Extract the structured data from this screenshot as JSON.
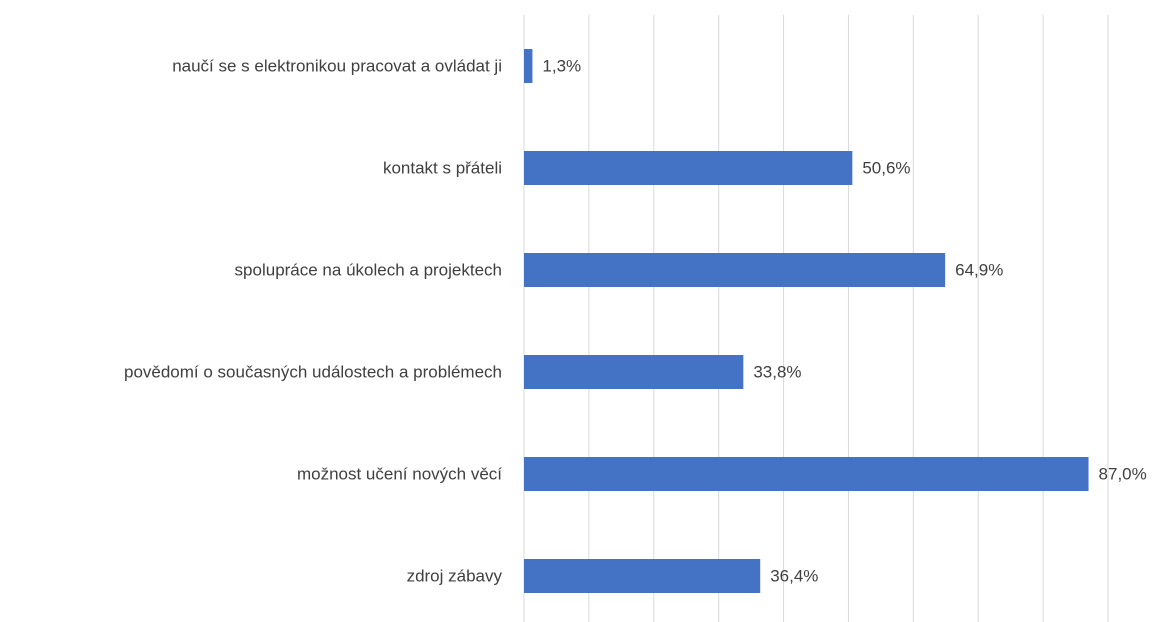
{
  "chart_data": {
    "type": "barh",
    "categories": [
      "naučí se s elektronikou pracovat a ovládat ji",
      "kontakt s přáteli",
      "spolupráce na úkolech a projektech",
      "povědomí o současných událostech a problémech",
      "možnost učení nových věcí",
      "zdroj zábavy"
    ],
    "values": [
      1.3,
      50.6,
      64.9,
      33.8,
      87.0,
      36.4
    ],
    "value_labels": [
      "1,3%",
      "50,6%",
      "64,9%",
      "33,8%",
      "87,0%",
      "36,4%"
    ],
    "color": "#4472c4",
    "xlim": [
      0,
      90
    ],
    "xticks": [
      0,
      10,
      20,
      30,
      40,
      50,
      60,
      70,
      80,
      90
    ],
    "grid": true
  }
}
